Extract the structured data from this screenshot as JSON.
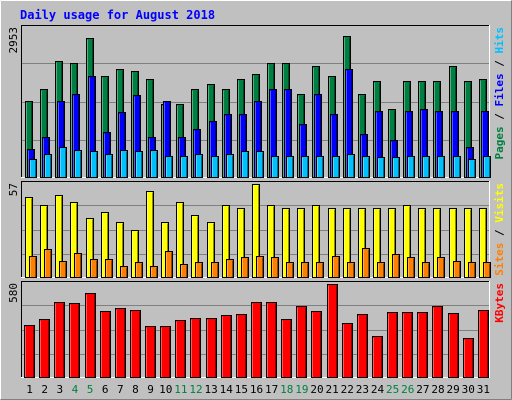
{
  "colors": {
    "background": "#c0c0c0",
    "title_text": "#0000ff",
    "pages": "#008040",
    "files": "#0000ff",
    "hits": "#00c0ff",
    "sites": "#ff8000",
    "visits": "#ffff00",
    "kbytes": "#ff0000",
    "weekend_label": "#008040"
  },
  "chart_data": [
    {
      "type": "bar",
      "title": "Daily usage for August 2018",
      "y_label_max": "2953",
      "ylim": [
        0,
        2953
      ],
      "legend": [
        "Pages",
        "Files",
        "Hits"
      ],
      "categories": [
        "1",
        "2",
        "3",
        "4",
        "5",
        "6",
        "7",
        "8",
        "9",
        "10",
        "11",
        "12",
        "13",
        "14",
        "15",
        "16",
        "17",
        "18",
        "19",
        "20",
        "21",
        "22",
        "23",
        "24",
        "25",
        "26",
        "27",
        "28",
        "29",
        "30",
        "31"
      ],
      "weekend_days": [
        4,
        5,
        11,
        12,
        18,
        19,
        25,
        26
      ],
      "series": [
        {
          "name": "Hits",
          "values": [
            1500,
            1750,
            2300,
            2250,
            2753,
            2000,
            2150,
            2100,
            1950,
            1450,
            1450,
            1750,
            1850,
            1750,
            1950,
            2050,
            2250,
            2250,
            1650,
            2200,
            2000,
            2785,
            1650,
            1900,
            1350,
            1900,
            1900,
            1900,
            2200,
            1900,
            1950
          ]
        },
        {
          "name": "Files",
          "values": [
            550,
            800,
            1500,
            1650,
            2000,
            900,
            1280,
            1620,
            800,
            1500,
            800,
            950,
            1100,
            1250,
            1250,
            1500,
            1750,
            1750,
            1050,
            1650,
            1250,
            2150,
            850,
            1300,
            730,
            1300,
            1350,
            1300,
            1300,
            600,
            1300
          ]
        },
        {
          "name": "Pages",
          "values": [
            120,
            150,
            200,
            180,
            170,
            150,
            180,
            170,
            180,
            140,
            140,
            150,
            140,
            150,
            170,
            170,
            140,
            140,
            140,
            140,
            140,
            150,
            140,
            130,
            130,
            140,
            140,
            140,
            140,
            120,
            140
          ]
        }
      ]
    },
    {
      "type": "bar",
      "y_label_max": "57",
      "ylim": [
        0,
        57
      ],
      "legend": [
        "Sites",
        "Visits"
      ],
      "categories": [
        "1",
        "2",
        "3",
        "4",
        "5",
        "6",
        "7",
        "8",
        "9",
        "10",
        "11",
        "12",
        "13",
        "14",
        "15",
        "16",
        "17",
        "18",
        "19",
        "20",
        "21",
        "22",
        "23",
        "24",
        "25",
        "26",
        "27",
        "28",
        "29",
        "30",
        "31"
      ],
      "series": [
        {
          "name": "Visits",
          "values": [
            49,
            44,
            50,
            46,
            36,
            40,
            34,
            29,
            53,
            34,
            46,
            38,
            34,
            44,
            42,
            57,
            44,
            42,
            42,
            44,
            42,
            42,
            42,
            42,
            42,
            44,
            42,
            42,
            42,
            42,
            42
          ]
        },
        {
          "name": "Sites",
          "values": [
            13,
            17,
            10,
            15,
            11,
            11,
            7,
            9,
            7,
            16,
            8,
            9,
            9,
            11,
            12,
            13,
            12,
            9,
            9,
            9,
            13,
            9,
            18,
            9,
            14,
            12,
            9,
            12,
            10,
            9,
            9
          ]
        }
      ]
    },
    {
      "type": "bar",
      "y_label_max": "580",
      "ylim": [
        0,
        580
      ],
      "legend": [
        "KBytes"
      ],
      "categories": [
        "1",
        "2",
        "3",
        "4",
        "5",
        "6",
        "7",
        "8",
        "9",
        "10",
        "11",
        "12",
        "13",
        "14",
        "15",
        "16",
        "17",
        "18",
        "19",
        "20",
        "21",
        "22",
        "23",
        "24",
        "25",
        "26",
        "27",
        "28",
        "29",
        "30",
        "31"
      ],
      "series": [
        {
          "name": "KBytes",
          "values": [
            325,
            360,
            465,
            460,
            523,
            410,
            430,
            420,
            320,
            320,
            355,
            370,
            365,
            385,
            395,
            470,
            470,
            360,
            440,
            410,
            580,
            335,
            390,
            255,
            405,
            405,
            405,
            440,
            400,
            245,
            420
          ]
        }
      ]
    }
  ]
}
